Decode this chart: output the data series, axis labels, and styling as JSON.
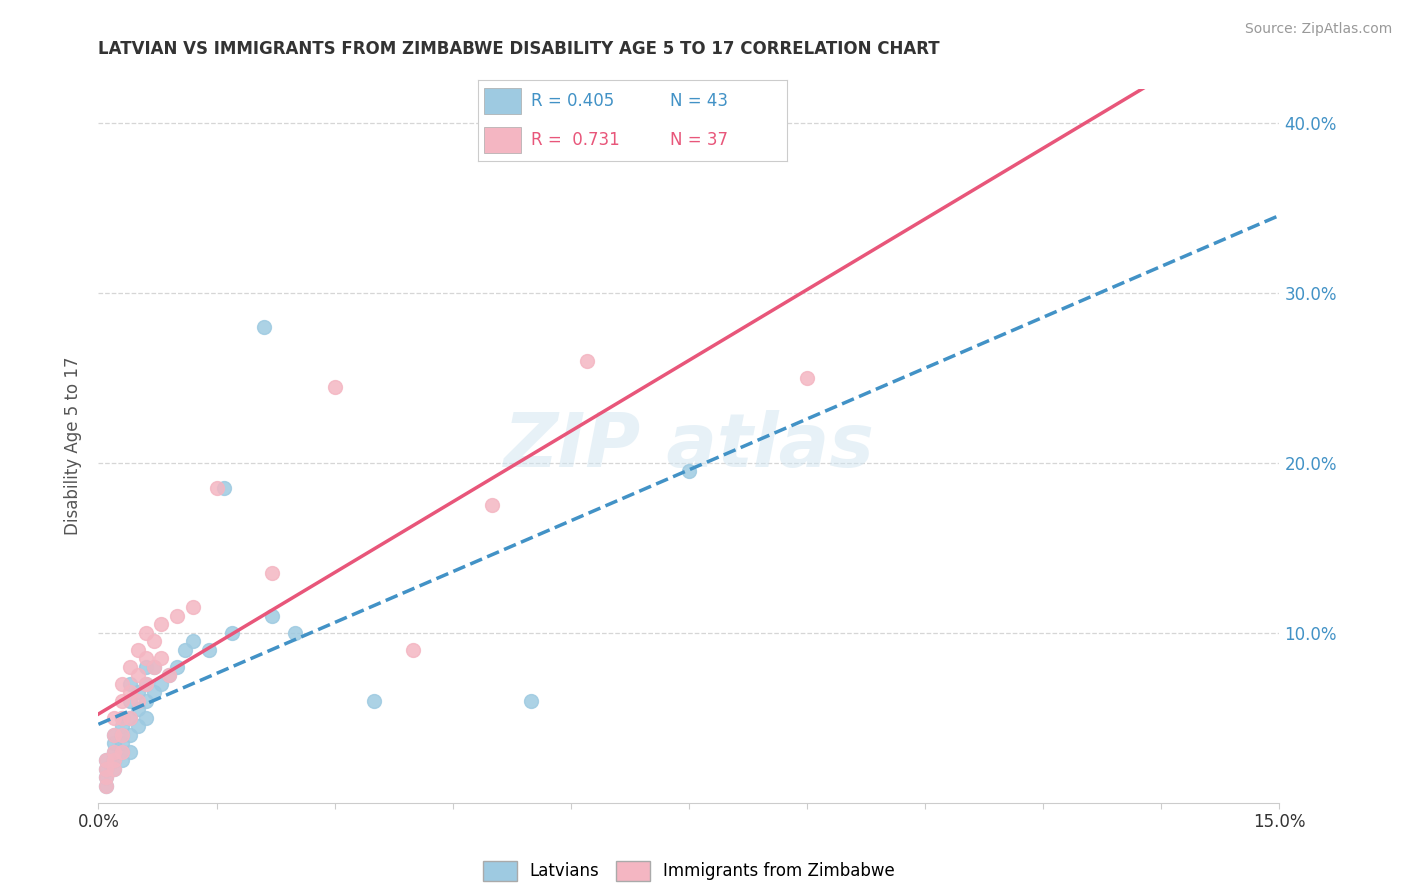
{
  "title": "LATVIAN VS IMMIGRANTS FROM ZIMBABWE DISABILITY AGE 5 TO 17 CORRELATION CHART",
  "source": "Source: ZipAtlas.com",
  "ylabel": "Disability Age 5 to 17",
  "xlim": [
    0.0,
    0.15
  ],
  "ylim": [
    0.0,
    0.42
  ],
  "xticks": [
    0.0,
    0.015,
    0.03,
    0.045,
    0.06,
    0.075,
    0.09,
    0.105,
    0.12,
    0.135,
    0.15
  ],
  "xtick_labels": [
    "0.0%",
    "",
    "",
    "",
    "",
    "",
    "",
    "",
    "",
    "",
    "15.0%"
  ],
  "ytick_vals": [
    0.1,
    0.2,
    0.3,
    0.4
  ],
  "ytick_labels": [
    "10.0%",
    "20.0%",
    "30.0%",
    "40.0%"
  ],
  "legend_r1": "R = 0.405",
  "legend_n1": "N = 43",
  "legend_r2": "R =  0.731",
  "legend_n2": "N = 37",
  "color_latvian": "#9ecae1",
  "color_zimbabwe": "#f4b6c2",
  "line_color_latvian": "#4292c6",
  "line_color_zimbabwe": "#e8567a",
  "background_color": "#ffffff",
  "grid_color": "#cccccc",
  "latvian_x": [
    0.001,
    0.001,
    0.001,
    0.001,
    0.002,
    0.002,
    0.002,
    0.002,
    0.002,
    0.003,
    0.003,
    0.003,
    0.003,
    0.003,
    0.003,
    0.004,
    0.004,
    0.004,
    0.004,
    0.004,
    0.005,
    0.005,
    0.005,
    0.006,
    0.006,
    0.006,
    0.006,
    0.007,
    0.007,
    0.008,
    0.009,
    0.01,
    0.011,
    0.012,
    0.014,
    0.016,
    0.017,
    0.021,
    0.022,
    0.025,
    0.035,
    0.055,
    0.075
  ],
  "latvian_y": [
    0.01,
    0.015,
    0.02,
    0.025,
    0.02,
    0.025,
    0.03,
    0.035,
    0.04,
    0.025,
    0.03,
    0.035,
    0.04,
    0.045,
    0.05,
    0.03,
    0.04,
    0.05,
    0.06,
    0.07,
    0.045,
    0.055,
    0.065,
    0.05,
    0.06,
    0.07,
    0.08,
    0.065,
    0.08,
    0.07,
    0.075,
    0.08,
    0.09,
    0.095,
    0.09,
    0.185,
    0.1,
    0.28,
    0.11,
    0.1,
    0.06,
    0.06,
    0.195
  ],
  "zimbabwe_x": [
    0.001,
    0.001,
    0.001,
    0.001,
    0.002,
    0.002,
    0.002,
    0.002,
    0.002,
    0.003,
    0.003,
    0.003,
    0.003,
    0.003,
    0.004,
    0.004,
    0.004,
    0.005,
    0.005,
    0.005,
    0.006,
    0.006,
    0.006,
    0.007,
    0.007,
    0.008,
    0.008,
    0.009,
    0.01,
    0.012,
    0.015,
    0.022,
    0.03,
    0.04,
    0.05,
    0.062,
    0.09
  ],
  "zimbabwe_y": [
    0.01,
    0.015,
    0.02,
    0.025,
    0.02,
    0.025,
    0.03,
    0.04,
    0.05,
    0.03,
    0.04,
    0.05,
    0.06,
    0.07,
    0.05,
    0.065,
    0.08,
    0.06,
    0.075,
    0.09,
    0.07,
    0.085,
    0.1,
    0.08,
    0.095,
    0.085,
    0.105,
    0.075,
    0.11,
    0.115,
    0.185,
    0.135,
    0.245,
    0.09,
    0.175,
    0.26,
    0.25
  ]
}
